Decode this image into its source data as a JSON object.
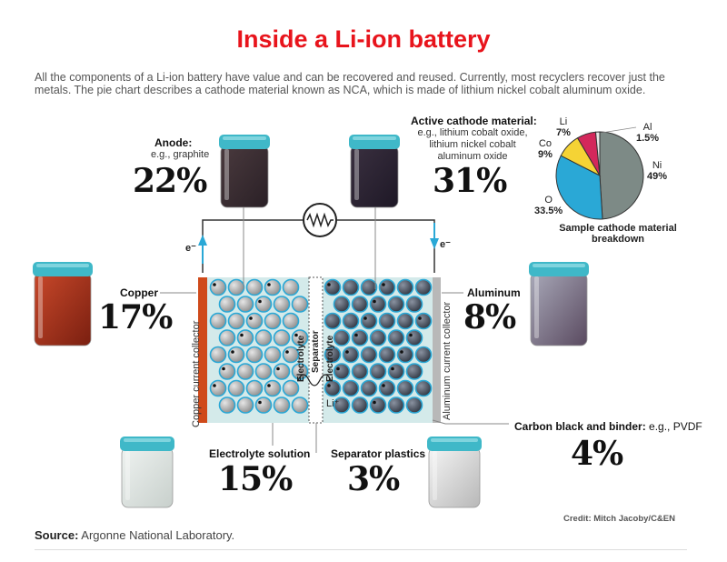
{
  "title": "Inside a Li-ion battery",
  "intro": "All the components of a Li-ion battery have value and can be recovered and reused. Currently, most recyclers recover just the metals. The pie chart describes a cathode material known as NCA, which is made of lithium nickel cobalt aluminum oxide.",
  "components": {
    "anode": {
      "label": "Anode:",
      "sub": "e.g., graphite",
      "pct": "22%"
    },
    "cathode": {
      "label": "Active cathode material:",
      "sub": "e.g., lithium cobalt oxide, lithium nickel cobalt aluminum oxide",
      "pct": "31%"
    },
    "copper": {
      "label": "Copper",
      "pct": "17%"
    },
    "aluminum": {
      "label": "Aluminum",
      "pct": "8%"
    },
    "electrolyte": {
      "label": "Electrolyte solution",
      "pct": "15%"
    },
    "separator": {
      "label": "Separator plastics",
      "pct": "3%"
    },
    "carbon": {
      "label": "Carbon black and binder:",
      "sub": "e.g., PVDF",
      "pct": "4%"
    }
  },
  "cell": {
    "copper_collector": "Copper current collector",
    "aluminum_collector": "Aluminum current collector",
    "electrolyte_left": "Electrolyte",
    "separator": "Separator",
    "electrolyte_right": "Electrolyte",
    "electron_left": "e⁻",
    "electron_right": "e⁻",
    "lithium_ion": "Li⁺"
  },
  "chart_data": {
    "type": "pie",
    "title": "Sample cathode material breakdown",
    "slices": [
      {
        "name": "Ni",
        "value": 49,
        "label": "49%",
        "color": "#7d8a86"
      },
      {
        "name": "O",
        "value": 33.5,
        "label": "33.5%",
        "color": "#2aa8d6"
      },
      {
        "name": "Co",
        "value": 9,
        "label": "9%",
        "color": "#f5d335"
      },
      {
        "name": "Li",
        "value": 7,
        "label": "7%",
        "color": "#d3285b"
      },
      {
        "name": "Al",
        "value": 1.5,
        "label": "1.5%",
        "color": "#e8e8e8"
      }
    ]
  },
  "colors": {
    "title": "#e8141c",
    "jar_lid": "#3fb8c8",
    "copper": "#cf4a1a",
    "aluminum": "#b8b8b8",
    "electrolyte_fill": "#d4eaea",
    "particle_anode": "#a0a0a0",
    "particle_cathode": "#505866",
    "particle_outline": "#2aa8d6"
  },
  "credit": "Credit: Mitch Jacoby/C&EN",
  "source": {
    "label": "Source:",
    "text": " Argonne National Laboratory."
  }
}
